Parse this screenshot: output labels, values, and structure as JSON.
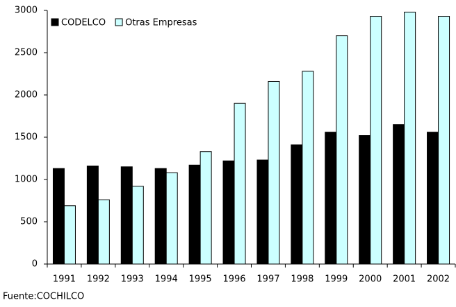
{
  "chart_data": {
    "type": "bar",
    "categories": [
      "1991",
      "1992",
      "1993",
      "1994",
      "1995",
      "1996",
      "1997",
      "1998",
      "1999",
      "2000",
      "2001",
      "2002"
    ],
    "series": [
      {
        "name": "CODELCO",
        "color": "#000000",
        "values": [
          1130,
          1160,
          1150,
          1130,
          1170,
          1220,
          1230,
          1410,
          1560,
          1520,
          1650,
          1560
        ]
      },
      {
        "name": "Otras Empresas",
        "color": "#ccffff",
        "values": [
          690,
          760,
          920,
          1080,
          1330,
          1900,
          2160,
          2280,
          2700,
          2930,
          2980,
          2930
        ]
      }
    ],
    "ylim": [
      0,
      3000
    ],
    "yticks": [
      0,
      500,
      1000,
      1500,
      2000,
      2500,
      3000
    ],
    "grid": false,
    "legend": "top-left",
    "source": "Fuente:COCHILCO"
  }
}
